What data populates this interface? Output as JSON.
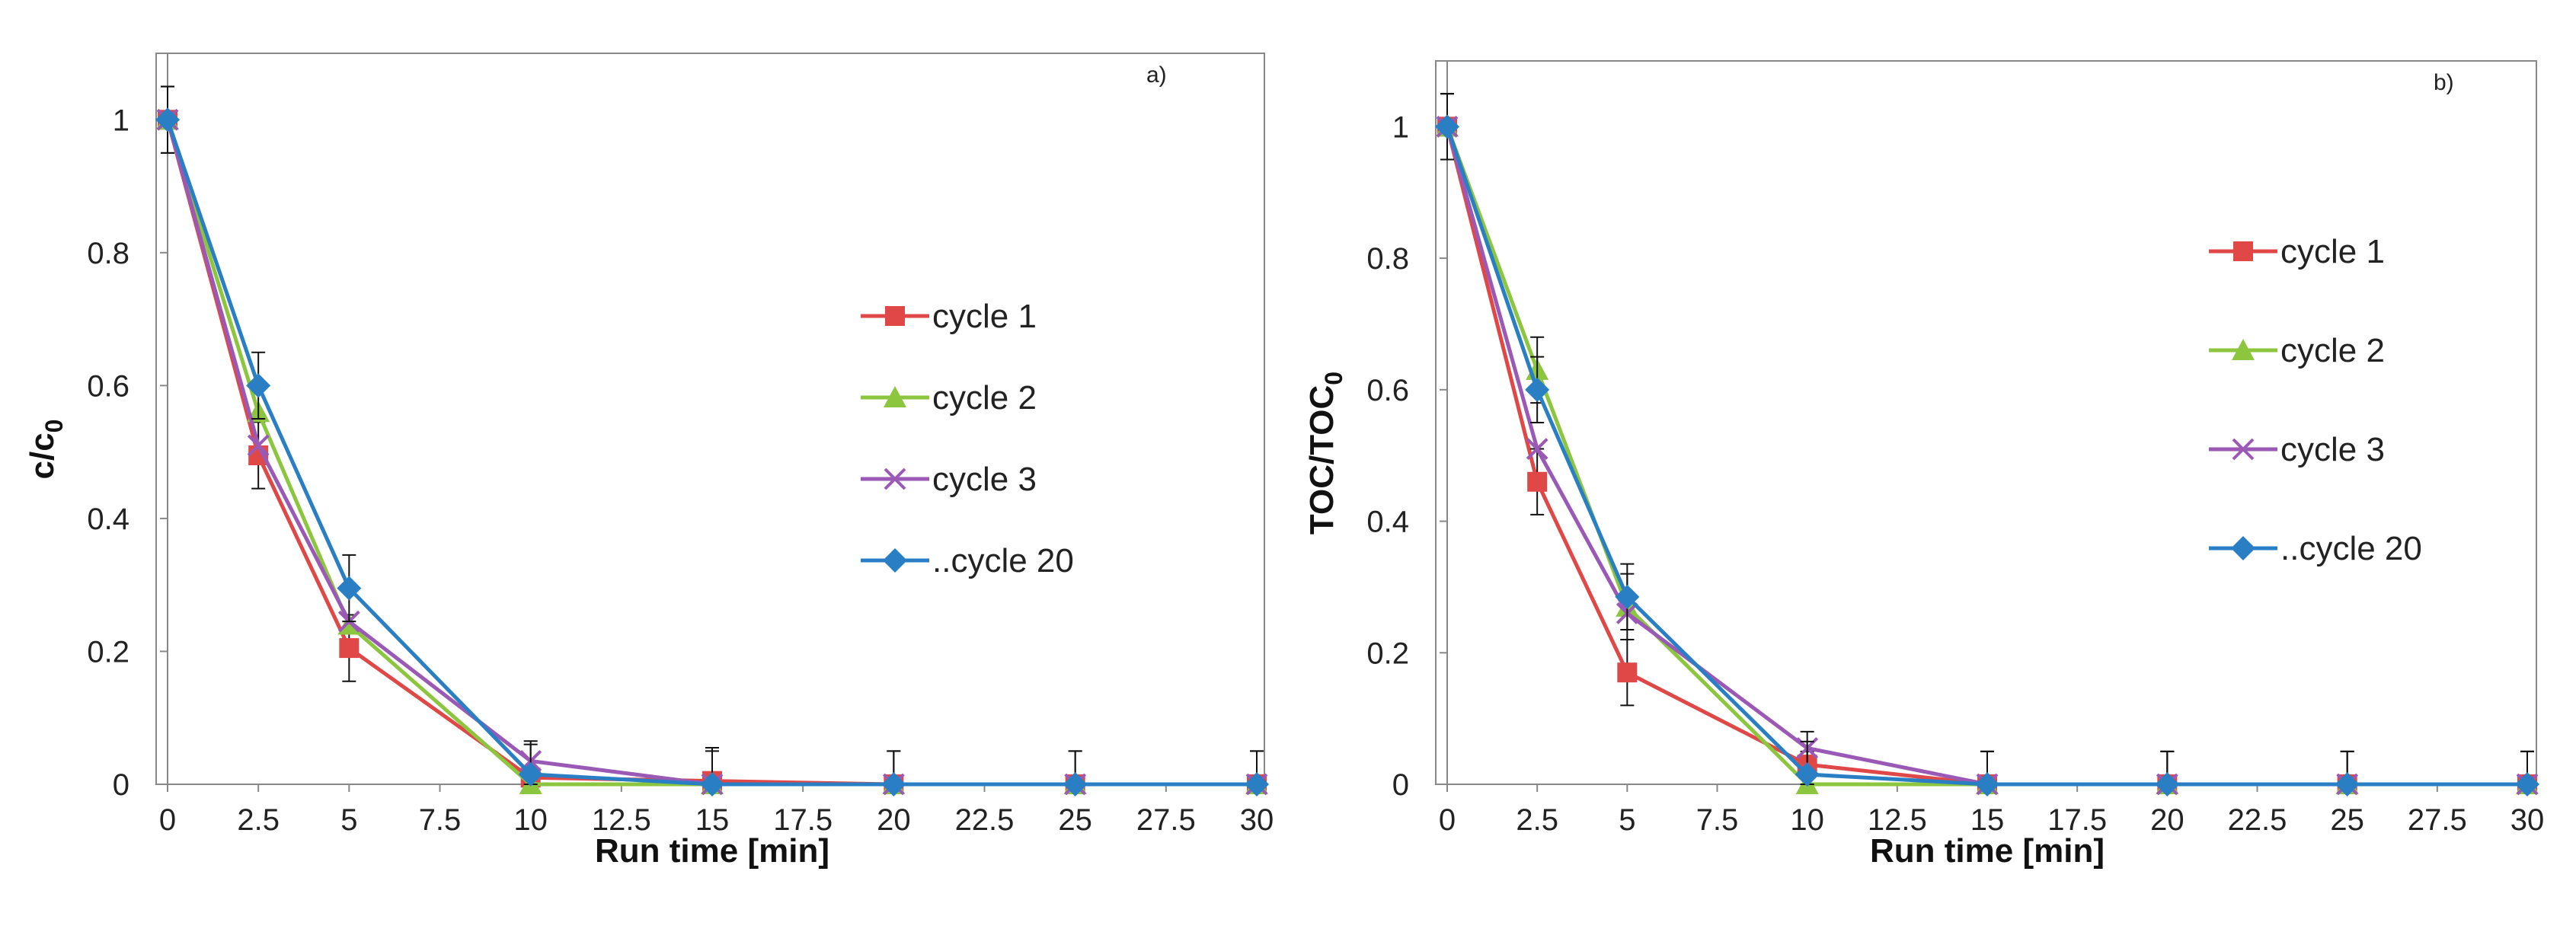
{
  "chart_data": [
    {
      "type": "line",
      "panel_label": "a)",
      "xlabel": "Run time [min]",
      "ylabel": "c/c0",
      "ylabel_main": "c/c",
      "ylabel_sub": "0",
      "xlim": [
        0,
        30
      ],
      "ylim": [
        0,
        1.1
      ],
      "x_ticks": [
        "0",
        "2.5",
        "5",
        "7.5",
        "10",
        "12.5",
        "15",
        "17.5",
        "20",
        "22.5",
        "25",
        "27.5",
        "30"
      ],
      "y_ticks": [
        "0",
        "0.2",
        "0.4",
        "0.6",
        "0.8",
        "1"
      ],
      "grid": false,
      "legend_position": "right",
      "x": [
        0,
        2.5,
        5,
        10,
        15,
        20,
        25,
        30
      ],
      "series": [
        {
          "name": "cycle 1",
          "color": "#e04848",
          "marker": "square",
          "values": [
            1,
            0.495,
            0.205,
            0.01,
            0.005,
            0,
            0,
            0
          ],
          "error": [
            0.05,
            0.05,
            0.05,
            0.05,
            0.05,
            0.05,
            0.05,
            0.05
          ]
        },
        {
          "name": "cycle 2",
          "color": "#8cc63f",
          "marker": "triangle",
          "values": [
            1,
            0.56,
            0.24,
            0.0,
            0,
            0,
            0,
            0
          ]
        },
        {
          "name": "cycle 3",
          "color": "#9b59b6",
          "marker": "x",
          "values": [
            1,
            0.51,
            0.245,
            0.035,
            0,
            0,
            0,
            0
          ]
        },
        {
          "name": "..cycle 20",
          "color": "#2a7fc4",
          "marker": "diamond",
          "values": [
            1,
            0.6,
            0.295,
            0.015,
            0,
            0,
            0,
            0
          ],
          "error": [
            0.05,
            0.05,
            0.05,
            0.05,
            0.05,
            0.05,
            0.05,
            0.05
          ]
        }
      ]
    },
    {
      "type": "line",
      "panel_label": "b)",
      "xlabel": "Run time [min]",
      "ylabel": "TOC/TOC0",
      "ylabel_main": "TOC/TOC",
      "ylabel_sub": "0",
      "xlim": [
        0,
        30
      ],
      "ylim": [
        0,
        1.1
      ],
      "x_ticks": [
        "0",
        "2.5",
        "5",
        "7.5",
        "10",
        "12.5",
        "15",
        "17.5",
        "20",
        "22.5",
        "25",
        "27.5",
        "30"
      ],
      "y_ticks": [
        "0",
        "0.2",
        "0.4",
        "0.6",
        "0.8",
        "1"
      ],
      "grid": false,
      "legend_position": "right",
      "x": [
        0,
        2.5,
        5,
        10,
        15,
        20,
        25,
        30
      ],
      "series": [
        {
          "name": "cycle 1",
          "color": "#e04848",
          "marker": "square",
          "values": [
            1,
            0.46,
            0.17,
            0.03,
            0,
            0,
            0,
            0
          ],
          "error": [
            0.05,
            0.05,
            0.05,
            0.05,
            0.05,
            0.05,
            0.05,
            0.05
          ]
        },
        {
          "name": "cycle 2",
          "color": "#8cc63f",
          "marker": "triangle",
          "values": [
            1,
            0.63,
            0.27,
            0.0,
            0,
            0,
            0,
            0
          ],
          "error": [
            0.05,
            0.05,
            0.05,
            0.05,
            0.05,
            0.05,
            0.05,
            0.05
          ]
        },
        {
          "name": "cycle 3",
          "color": "#9b59b6",
          "marker": "x",
          "values": [
            1,
            0.51,
            0.26,
            0.055,
            0,
            0,
            0,
            0
          ]
        },
        {
          "name": "..cycle 20",
          "color": "#2a7fc4",
          "marker": "diamond",
          "values": [
            1,
            0.6,
            0.285,
            0.015,
            0,
            0,
            0,
            0
          ],
          "error": [
            0.05,
            0.05,
            0.05,
            0.05,
            0.05,
            0.05,
            0.05,
            0.05
          ]
        }
      ]
    }
  ]
}
